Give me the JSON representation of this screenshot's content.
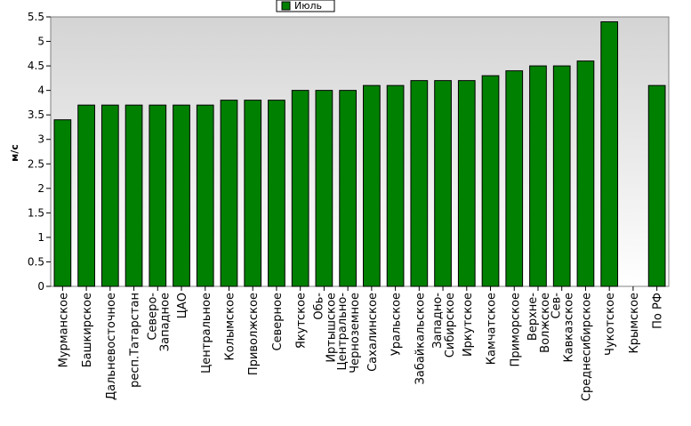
{
  "chart_data": {
    "type": "bar",
    "ylabel": "м/с",
    "ylim": [
      0,
      5.5
    ],
    "yticks": [
      0,
      0.5,
      1,
      1.5,
      2,
      2.5,
      3,
      3.5,
      4,
      4.5,
      5,
      5.5
    ],
    "grid": false,
    "legend_position": "top-center",
    "series": [
      {
        "name": "Июль",
        "color": "#008000",
        "values": [
          3.4,
          3.7,
          3.7,
          3.7,
          3.7,
          3.7,
          3.7,
          3.8,
          3.8,
          3.8,
          4.0,
          4.0,
          4.0,
          4.1,
          4.1,
          4.2,
          4.2,
          4.2,
          4.3,
          4.4,
          4.5,
          4.5,
          4.6,
          5.4,
          null,
          4.1
        ]
      }
    ],
    "categories": [
      "Мурманское",
      "Башкирское",
      "Дальневосточное",
      "респ.Татарстан",
      "Северо-\nЗападное",
      "ЦАО",
      "Центральное",
      "Колымское",
      "Приволжское",
      "Северное",
      "Якутское",
      "Обь-\nИртышское",
      "Центрально-\nЧерноземное",
      "Сахалинское",
      "Уральское",
      "Забайкальское",
      "Западно-\nСибирское",
      "Иркутское",
      "Камчатское",
      "Приморское",
      "Верхне-\nВолжское",
      "Сев-\nКавказское",
      "Среднесибирское",
      "Чукотское",
      "Крымское",
      "По РФ"
    ]
  }
}
